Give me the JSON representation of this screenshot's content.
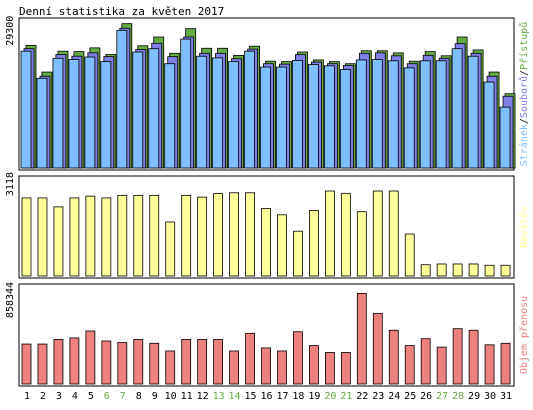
{
  "title": "Denní statistika za květen 2017",
  "colors": {
    "pristupu": "#66aa44",
    "souboru": "#7f7fe6",
    "stranek": "#7fbfff",
    "navstev": "#ffff99",
    "objem": "#ee8080",
    "weekend_label": "#66aa44",
    "weekday_label": "#000080",
    "border": "#000000",
    "grid_bg": "#ffffff"
  },
  "chart_data": [
    {
      "type": "bar",
      "name": "requests",
      "ylabel_parts": [
        "Stránek",
        "Souborů",
        "Přístupů"
      ],
      "ytick_label": "29300",
      "ytick_value": 29300,
      "ylim": [
        0,
        35000
      ],
      "categories": [
        "1",
        "2",
        "3",
        "4",
        "5",
        "6",
        "7",
        "8",
        "9",
        "10",
        "11",
        "12",
        "13",
        "14",
        "15",
        "16",
        "17",
        "18",
        "19",
        "20",
        "21",
        "22",
        "23",
        "24",
        "25",
        "26",
        "27",
        "28",
        "29",
        "30",
        "31"
      ],
      "weekend_days": [
        "6",
        "7",
        "13",
        "14",
        "20",
        "21",
        "27",
        "28"
      ],
      "series": [
        {
          "name": "Přístupů",
          "values": [
            29400,
            23000,
            28000,
            27900,
            28800,
            27200,
            34600,
            29300,
            31400,
            27500,
            33400,
            28700,
            28700,
            27000,
            29200,
            25600,
            25500,
            27800,
            25900,
            25500,
            25000,
            28100,
            28100,
            27600,
            25600,
            27900,
            26900,
            31400,
            28300,
            23000,
            17800
          ]
        },
        {
          "name": "Souborů",
          "values": [
            28600,
            22000,
            27200,
            26800,
            27600,
            26700,
            33500,
            28400,
            29900,
            26700,
            31400,
            27500,
            27500,
            26200,
            28500,
            25000,
            24900,
            27200,
            25400,
            25000,
            24600,
            27500,
            27600,
            26900,
            25000,
            27000,
            26300,
            29800,
            27500,
            22000,
            17200
          ]
        },
        {
          "name": "Stránek",
          "values": [
            28000,
            21500,
            26300,
            26000,
            26600,
            25500,
            33000,
            27800,
            28600,
            25000,
            30900,
            26800,
            26400,
            25500,
            28000,
            24200,
            24200,
            25800,
            24800,
            24500,
            23600,
            25900,
            26000,
            25700,
            24000,
            25700,
            25700,
            28600,
            26800,
            20600,
            14600
          ]
        }
      ]
    },
    {
      "type": "bar",
      "name": "visits",
      "ylabel": "Návštěv",
      "ytick_label": "3118",
      "ytick_value": 3118,
      "ylim": [
        0,
        3750
      ],
      "categories": [
        "1",
        "2",
        "3",
        "4",
        "5",
        "6",
        "7",
        "8",
        "9",
        "10",
        "11",
        "12",
        "13",
        "14",
        "15",
        "16",
        "17",
        "18",
        "19",
        "20",
        "21",
        "22",
        "23",
        "24",
        "25",
        "26",
        "27",
        "28",
        "29",
        "30",
        "31"
      ],
      "series": [
        {
          "name": "Návštěv",
          "values": [
            3050,
            3050,
            2700,
            3050,
            3120,
            3050,
            3150,
            3150,
            3150,
            2110,
            3150,
            3080,
            3220,
            3250,
            3250,
            2640,
            2390,
            1750,
            2560,
            3320,
            3230,
            2510,
            3320,
            3320,
            1640,
            440,
            470,
            470,
            470,
            420,
            420
          ]
        }
      ]
    },
    {
      "type": "bar",
      "name": "transfer",
      "ylabel": "Objem přenosu",
      "ytick_label": "858344",
      "ytick_value": 858344,
      "ylim": [
        0,
        1250000
      ],
      "categories": [
        "1",
        "2",
        "3",
        "4",
        "5",
        "6",
        "7",
        "8",
        "9",
        "10",
        "11",
        "12",
        "13",
        "14",
        "15",
        "16",
        "17",
        "18",
        "19",
        "20",
        "21",
        "22",
        "23",
        "24",
        "25",
        "26",
        "27",
        "28",
        "29",
        "30",
        "31"
      ],
      "series": [
        {
          "name": "Objem přenosu",
          "values": [
            520000,
            520000,
            580000,
            600000,
            690000,
            560000,
            540000,
            580000,
            530000,
            430000,
            580000,
            580000,
            580000,
            430000,
            660000,
            470000,
            430000,
            680000,
            500000,
            410000,
            410000,
            1180000,
            920000,
            700000,
            500000,
            590000,
            480000,
            720000,
            700000,
            510000,
            530000
          ]
        }
      ]
    }
  ]
}
